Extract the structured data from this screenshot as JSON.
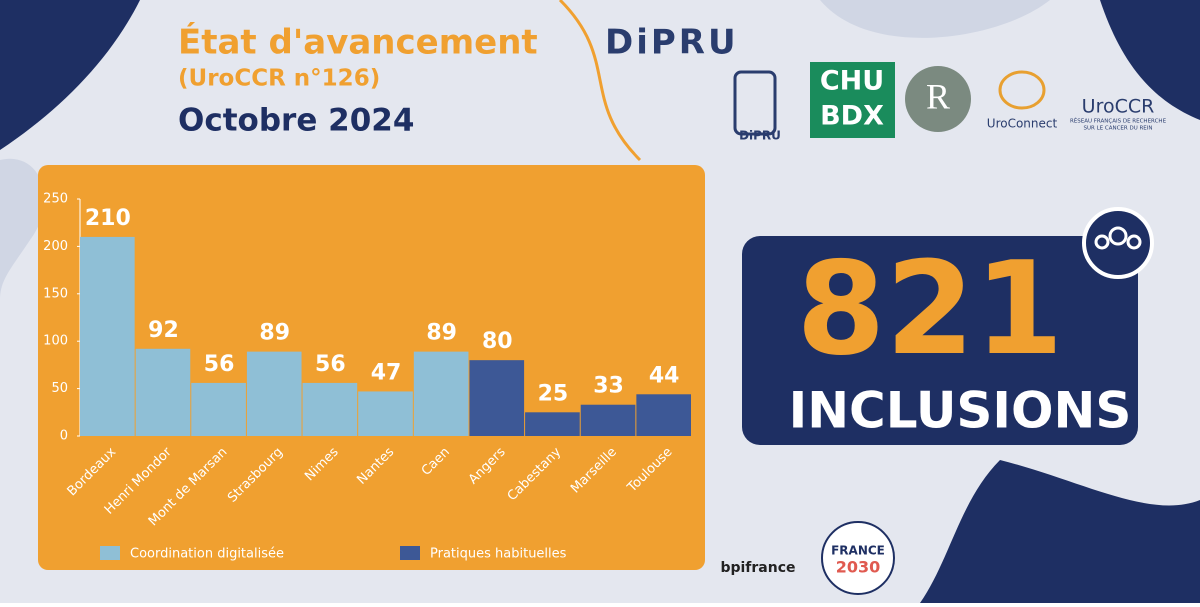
{
  "header": {
    "title": "État d'avancement",
    "brand": "DiPRU",
    "study": "(UroCCR n°126)",
    "date": "Octobre 2024"
  },
  "logos": {
    "app": "DiPRU",
    "chu_top": "CHU",
    "chu_bottom": "BDX",
    "r": "R",
    "uroconnect": "UroConnect",
    "uroccr": "UroCCR",
    "uroccr_line1": "RÉSEAU FRANÇAIS DE RECHERCHE",
    "uroccr_line2": "SUR LE CANCER DU REIN",
    "bpi": "bpifrance",
    "france": "FRANCE",
    "france_year": "2030"
  },
  "counter": {
    "value": "821",
    "label": "INCLUSIONS"
  },
  "chart_data": {
    "type": "bar",
    "categories": [
      "Bordeaux",
      "Henri Mondor",
      "Mont de Marsan",
      "Strasbourg",
      "Nimes",
      "Nantes",
      "Caen",
      "Angers",
      "Cabestany",
      "Marseille",
      "Toulouse"
    ],
    "series": [
      {
        "name": "Coordination digitalisée",
        "color": "#8fbfd6",
        "values": [
          210,
          92,
          56,
          89,
          56,
          47,
          89,
          null,
          null,
          null,
          null
        ]
      },
      {
        "name": "Pratiques habituelles",
        "color": "#3d5896",
        "values": [
          null,
          null,
          null,
          null,
          null,
          null,
          null,
          80,
          25,
          33,
          44
        ]
      }
    ],
    "ylim": [
      0,
      250
    ],
    "yticks": [
      0,
      50,
      100,
      150,
      200,
      250
    ]
  }
}
